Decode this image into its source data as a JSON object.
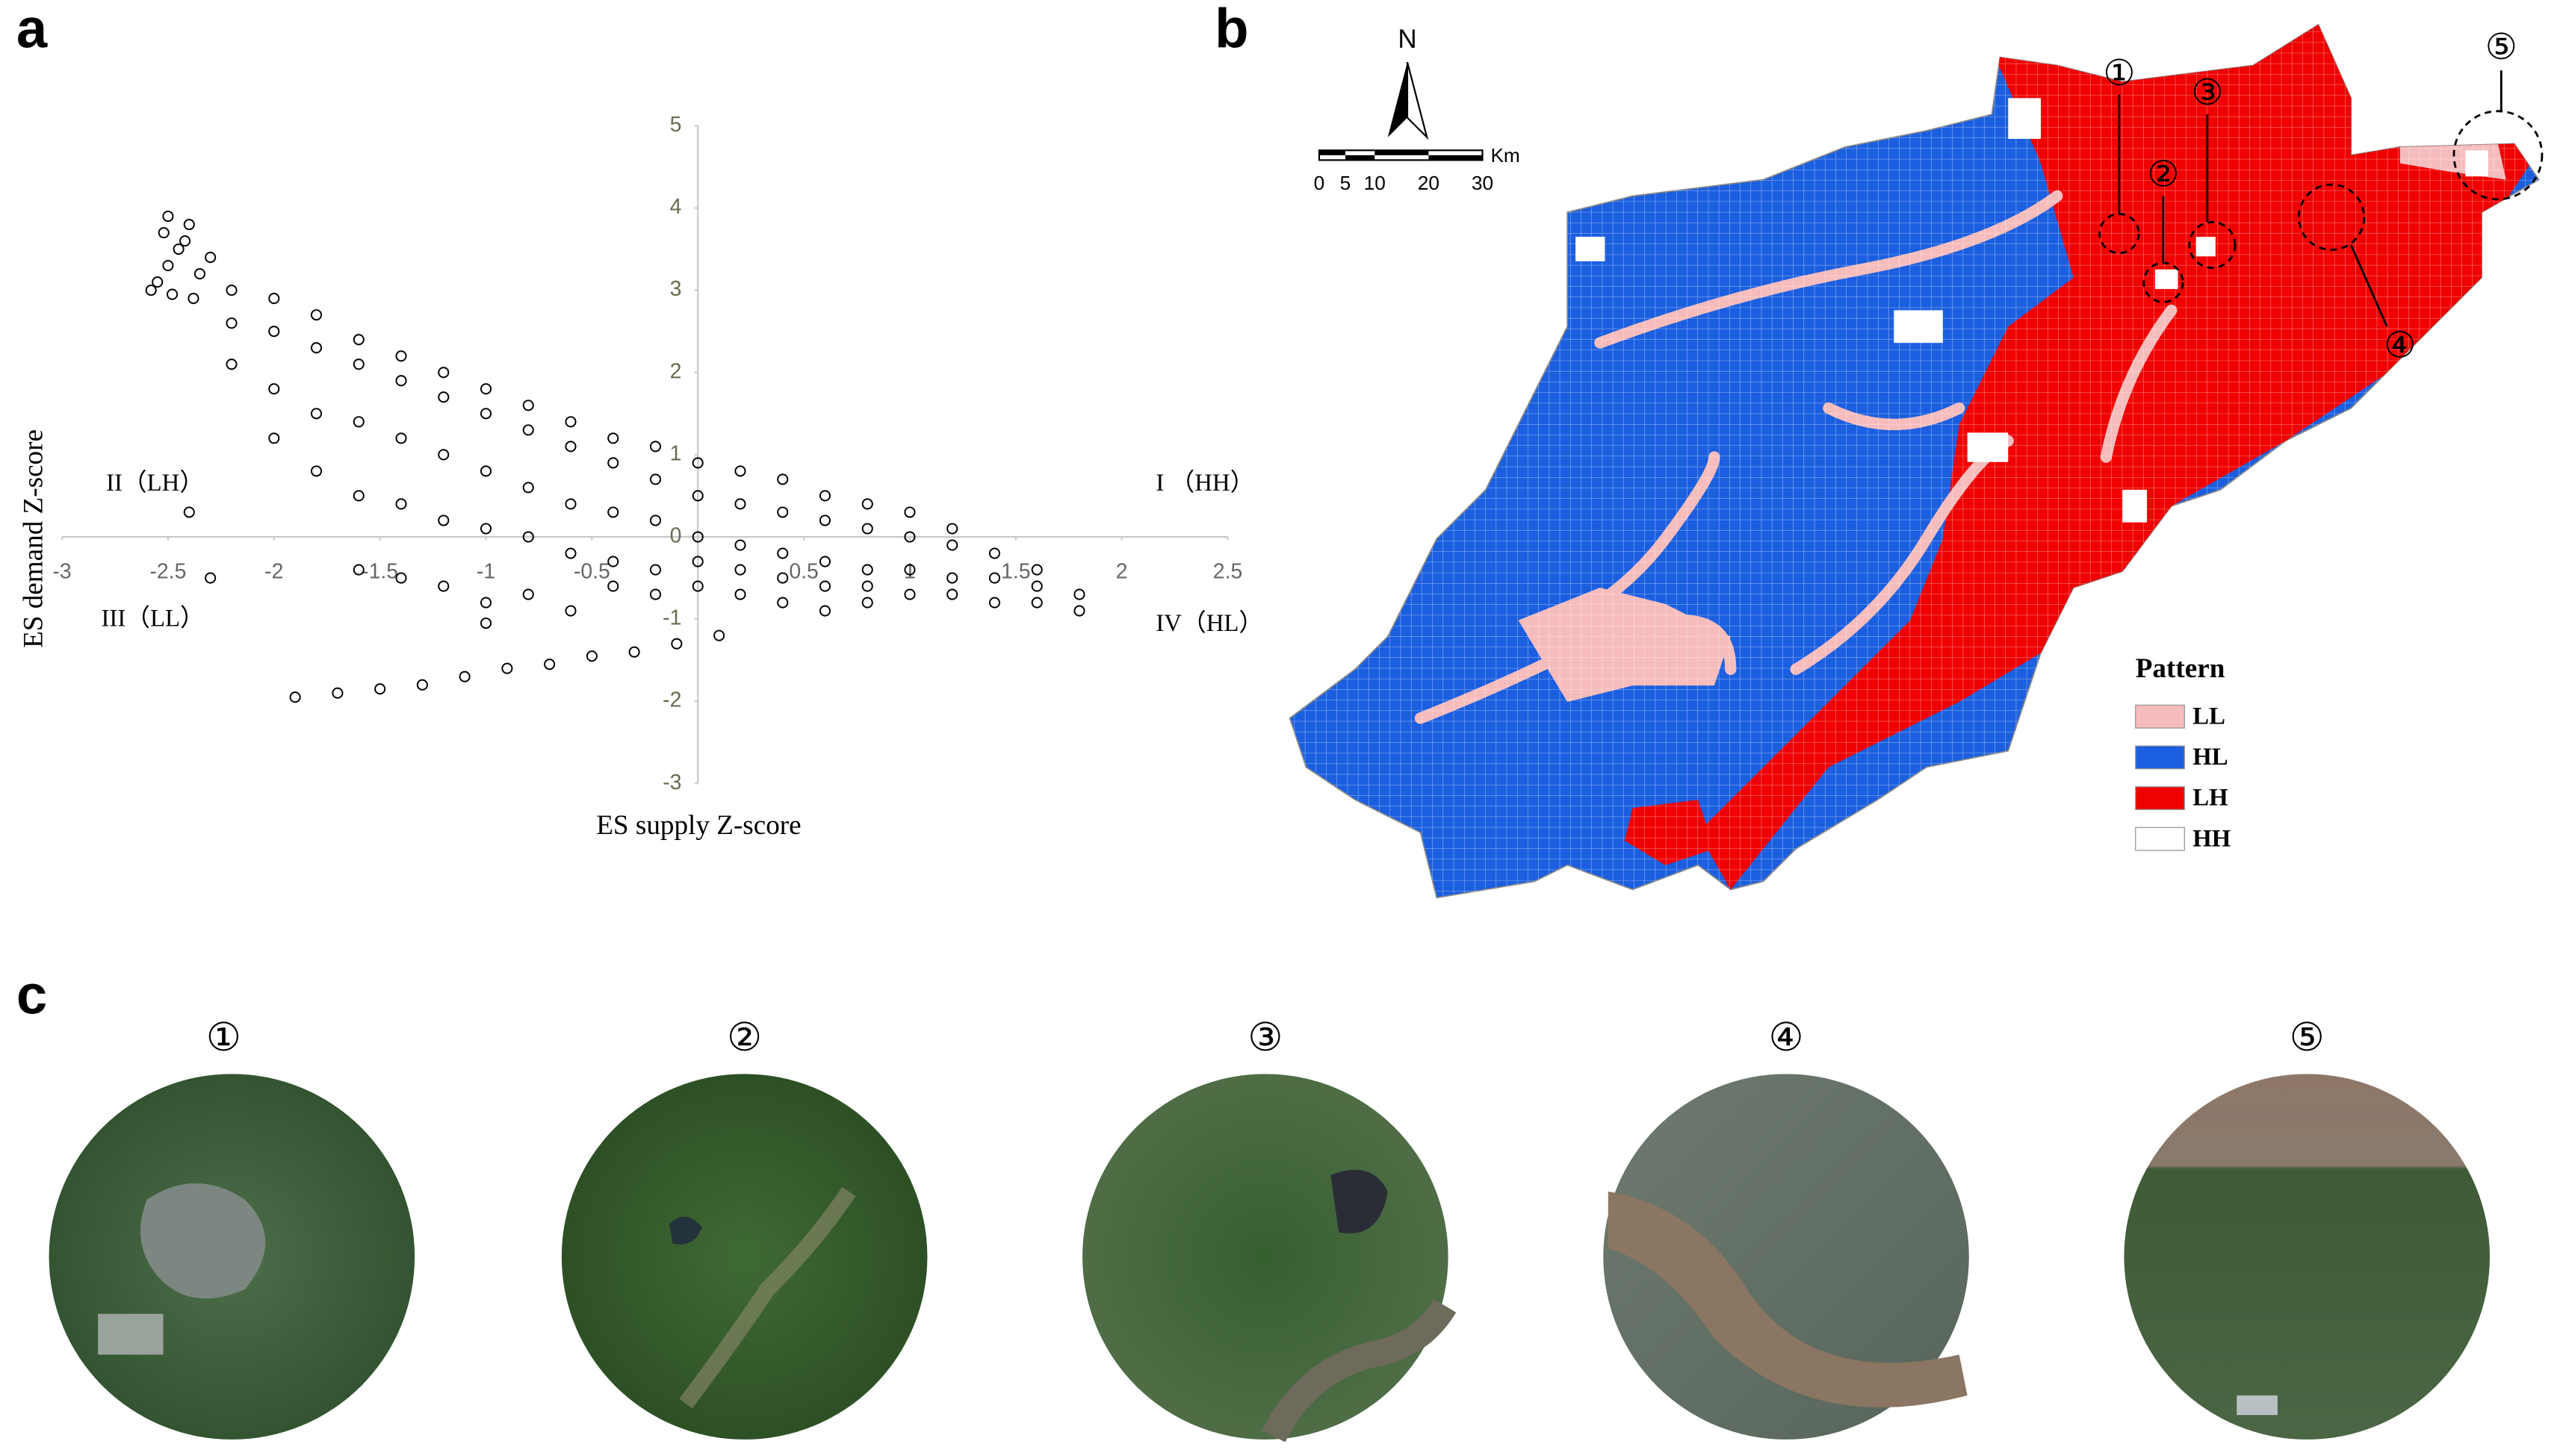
{
  "panel_labels": [
    "a",
    "b",
    "c"
  ],
  "chart_data": {
    "type": "scatter",
    "x_label": "ES supply Z-score",
    "y_label": "ES demand Z-score",
    "marker": "open-circle",
    "color": "#000000",
    "xlim": [
      -3,
      2.5
    ],
    "ylim": [
      -3,
      5
    ],
    "xticks": [
      -3,
      -2.5,
      -2,
      -1.5,
      -1,
      -0.5,
      0.5,
      1,
      1.5,
      2,
      2.5
    ],
    "yticks": [
      -3,
      -2,
      -1,
      0,
      1,
      2,
      3,
      4,
      5
    ],
    "quadrant_labels": [
      "II（LH）",
      "I （HH）",
      "III（LL）",
      "IV（HL）"
    ],
    "x": [
      -2.55,
      -2.5,
      -2.45,
      -2.52,
      -2.4,
      -2.48,
      -2.35,
      -2.58,
      -2.42,
      -2.3,
      -2.5,
      -2.38,
      -2.2,
      -2.2,
      -2.2,
      -2,
      -2,
      -2,
      -2,
      -1.8,
      -1.8,
      -1.8,
      -1.8,
      -1.6,
      -1.6,
      -1.6,
      -1.6,
      -1.6,
      -1.4,
      -1.4,
      -1.4,
      -1.4,
      -1.4,
      -1.2,
      -1.2,
      -1.2,
      -1.2,
      -1.2,
      -1,
      -1,
      -1,
      -1,
      -1,
      -0.8,
      -0.8,
      -0.8,
      -0.8,
      -0.8,
      -0.6,
      -0.6,
      -0.6,
      -0.6,
      -0.6,
      -0.4,
      -0.4,
      -0.4,
      -0.4,
      -0.4,
      -0.2,
      -0.2,
      -0.2,
      -0.2,
      -0.2,
      0,
      0,
      0,
      0,
      0,
      0.2,
      0.2,
      0.2,
      0.2,
      0.2,
      0.4,
      0.4,
      0.4,
      0.4,
      0.4,
      0.6,
      0.6,
      0.6,
      0.6,
      0.6,
      0.8,
      0.8,
      0.8,
      0.8,
      0.8,
      1,
      1,
      1,
      1,
      1.2,
      1.2,
      1.2,
      1.2,
      1.4,
      1.4,
      1.4,
      1.6,
      1.6,
      1.6,
      1.8,
      1.8,
      -1.9,
      -1.7,
      -1.5,
      -1.3,
      -1.1,
      -0.9,
      -0.7,
      -0.5,
      -0.3,
      -0.1,
      0.1,
      -1,
      -2.3,
      -2.4
    ],
    "y": [
      3.1,
      3.3,
      3.5,
      3.7,
      3.8,
      2.95,
      3.2,
      3,
      3.6,
      3.4,
      3.9,
      2.9,
      2.6,
      2.1,
      3,
      2.5,
      1.8,
      2.9,
      1.2,
      2.3,
      1.5,
      0.8,
      2.7,
      2.1,
      1.4,
      0.5,
      2.4,
      -0.4,
      1.9,
      1.2,
      0.4,
      2.2,
      -0.5,
      1.7,
      1,
      0.2,
      2,
      -0.6,
      1.5,
      0.8,
      0.1,
      1.8,
      -0.8,
      1.3,
      0.6,
      0,
      1.6,
      -0.7,
      1.1,
      0.4,
      -0.2,
      1.4,
      -0.9,
      0.9,
      0.3,
      -0.3,
      1.2,
      -0.6,
      0.7,
      0.2,
      -0.4,
      1.1,
      -0.7,
      0.5,
      0,
      -0.3,
      0.9,
      -0.6,
      0.4,
      -0.1,
      -0.4,
      0.8,
      -0.7,
      0.3,
      -0.2,
      -0.5,
      0.7,
      -0.8,
      0.2,
      -0.3,
      -0.6,
      0.5,
      -0.9,
      0.1,
      -0.4,
      -0.6,
      0.4,
      -0.8,
      0,
      -0.4,
      -0.7,
      0.3,
      -0.1,
      -0.5,
      -0.7,
      0.1,
      -0.2,
      -0.5,
      -0.8,
      -0.4,
      -0.6,
      -0.8,
      -0.7,
      -0.9,
      -1.95,
      -1.9,
      -1.85,
      -1.8,
      -1.7,
      -1.6,
      -1.55,
      -1.45,
      -1.4,
      -1.3,
      -1.2,
      -1.05,
      -0.5,
      0.3
    ]
  },
  "map": {
    "north_label": "N",
    "scale_unit": "Km",
    "scale_labels": [
      "0",
      "5",
      "10",
      "20",
      "30"
    ],
    "legend_title": "Pattern",
    "legend": [
      {
        "label": "LL",
        "color": "#f6bcbc"
      },
      {
        "label": "HL",
        "color": "#1b5fe0"
      },
      {
        "label": "LH",
        "color": "#f00000"
      },
      {
        "label": "HH",
        "color": "#ffffff"
      }
    ],
    "site_labels": [
      "①",
      "②",
      "③",
      "④",
      "⑤"
    ]
  },
  "images": {
    "labels": [
      "①",
      "②",
      "③",
      "④",
      "⑤"
    ]
  }
}
